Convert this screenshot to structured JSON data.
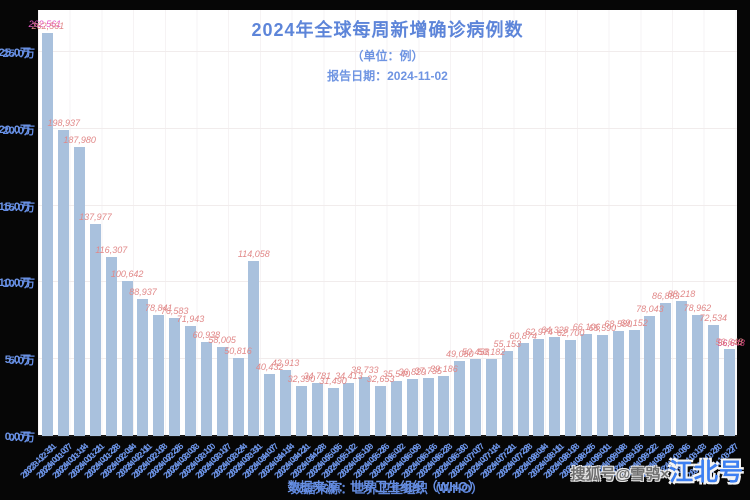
{
  "header": {
    "title": "2024年全球每周新增确诊病例数",
    "subtitle": "（单位：例）",
    "report_date_line": "报告日期：2024-11-02"
  },
  "footer": {
    "source": "数据来源：世界卫生组织（WHO）",
    "watermark_prefix": "搜狐号@雪鸮×",
    "watermark_brand": "江北号"
  },
  "colors": {
    "background": "#060606",
    "plot_background": "#ffffff",
    "bar": "#a9c1dd",
    "value_label": "#e18888",
    "value_label_highlight": "#e657c4",
    "axis_text": "#6d95e8",
    "title_text": "#5d85d9",
    "gridline": "#f1ecec",
    "watermark_brand": "#3d7ff2"
  },
  "chart_data": {
    "type": "bar",
    "title": "2024年全球每周新增确诊病例数",
    "unit": "例",
    "report_date": "2024-11-02",
    "source": "世界卫生组织（WHO）",
    "grid": true,
    "ylim": [
      0,
      250000
    ],
    "y_ticks": [
      "0.0万",
      "5.0万",
      "10.0万",
      "15.0万",
      "20.0万",
      "25.0万"
    ],
    "y_tick_values": [
      0,
      50000,
      100000,
      150000,
      200000,
      250000
    ],
    "x": [
      "2023-12-31",
      "2024-01-07",
      "2024-01-14",
      "2024-01-21",
      "2024-01-28",
      "2024-02-04",
      "2024-02-11",
      "2024-02-18",
      "2024-02-25",
      "2024-03-03",
      "2024-03-10",
      "2024-03-17",
      "2024-03-24",
      "2024-03-31",
      "2024-04-07",
      "2024-04-14",
      "2024-04-21",
      "2024-04-28",
      "2024-05-05",
      "2024-05-12",
      "2024-05-19",
      "2024-05-26",
      "2024-06-02",
      "2024-06-09",
      "2024-06-16",
      "2024-06-23",
      "2024-06-30",
      "2024-07-07",
      "2024-07-14",
      "2024-07-21",
      "2024-07-28",
      "2024-08-04",
      "2024-08-11",
      "2024-08-18",
      "2024-08-25",
      "2024-09-01",
      "2024-09-08",
      "2024-09-15",
      "2024-09-22",
      "2024-09-29",
      "2024-10-06",
      "2024-10-13",
      "2024-10-20",
      "2024-10-27"
    ],
    "values": [
      262561,
      198937,
      187980,
      137977,
      116307,
      100642,
      88937,
      78841,
      76583,
      71943,
      60938,
      58005,
      50816,
      114058,
      40432,
      42913,
      32390,
      34781,
      31490,
      34413,
      38733,
      32653,
      35540,
      36829,
      37735,
      39186,
      49050,
      50458,
      50182,
      55153,
      60874,
      62974,
      64328,
      62700,
      66106,
      65590,
      68580,
      69152,
      78043,
      86883,
      88218,
      78962,
      72534,
      56648
    ]
  }
}
